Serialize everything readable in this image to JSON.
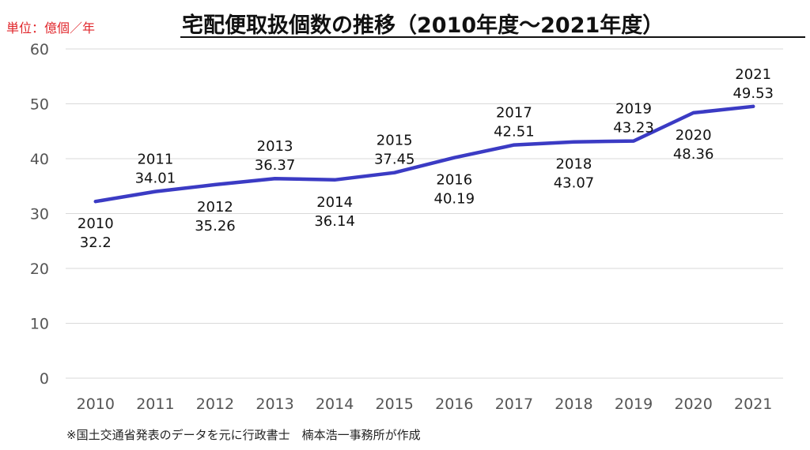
{
  "header": {
    "unit_label": "単位：億個／年",
    "title": "宅配便取扱個数の推移（2010年度～2021年度）"
  },
  "footer": {
    "source_note": "※国土交通省発表のデータを元に行政書士　楠本浩一事務所が作成"
  },
  "chart_data": {
    "type": "line",
    "title": "宅配便取扱個数の推移（2010年度～2021年度）",
    "xlabel": "",
    "ylabel": "",
    "categories": [
      "2010",
      "2011",
      "2012",
      "2013",
      "2014",
      "2015",
      "2016",
      "2017",
      "2018",
      "2019",
      "2020",
      "2021"
    ],
    "series": [
      {
        "values": [
          32.2,
          34.01,
          35.26,
          36.37,
          36.14,
          37.45,
          40.19,
          42.51,
          43.07,
          43.23,
          48.36,
          49.53
        ],
        "value_labels": [
          "32.2",
          "34.01",
          "35.26",
          "36.37",
          "36.14",
          "37.45",
          "40.19",
          "42.51",
          "43.07",
          "43.23",
          "48.36",
          "49.53"
        ],
        "color": "#3b3bc4"
      }
    ],
    "label_position": [
      "below",
      "above",
      "below",
      "above",
      "below",
      "above",
      "below",
      "above",
      "below",
      "above",
      "below",
      "above"
    ],
    "ylim": [
      0,
      60
    ],
    "yticks": [
      0,
      10,
      20,
      30,
      40,
      50,
      60
    ],
    "grid": true,
    "gridline_color": "#d9d9d9",
    "legend": "none"
  }
}
